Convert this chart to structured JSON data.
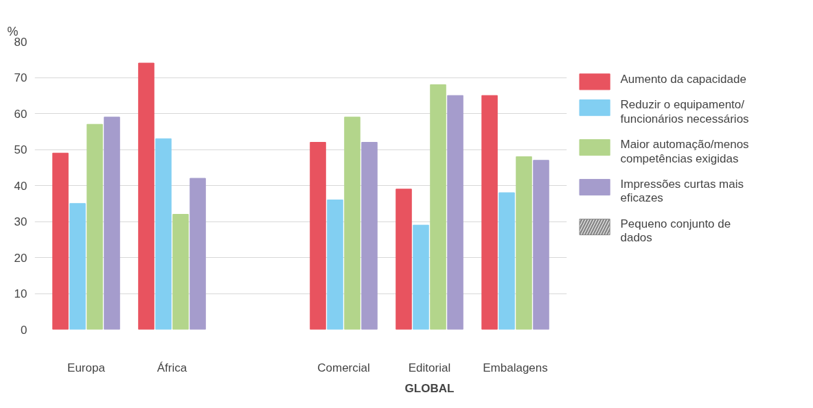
{
  "chart_data": {
    "type": "bar",
    "ylabel": "%",
    "categories": [
      "Europa",
      "África",
      null,
      "Comercial",
      "Editorial",
      "Embalagens"
    ],
    "series": [
      {
        "name": "Aumento da capacidade",
        "color": "#e8535f",
        "values": [
          49,
          74,
          null,
          52,
          39,
          65
        ]
      },
      {
        "name": "Reduzir o equipamento/ funcionários necessários",
        "color": "#82cff2",
        "values": [
          35,
          53,
          null,
          36,
          29,
          38
        ]
      },
      {
        "name": "Maior automação/menos competências exigidas",
        "color": "#b3d58b",
        "values": [
          57,
          32,
          null,
          59,
          68,
          48
        ]
      },
      {
        "name": "Impressões curtas mais eficazes",
        "color": "#a59ccc",
        "values": [
          59,
          42,
          null,
          52,
          65,
          47
        ]
      },
      {
        "name": "Pequeno conjunto de dados",
        "color": "#8a8a8a",
        "values": [
          null,
          null,
          null,
          null,
          null,
          null
        ]
      }
    ],
    "ylim": [
      0,
      80
    ],
    "yticks": [
      0,
      10,
      20,
      30,
      40,
      50,
      60,
      70,
      80
    ],
    "grid": "y",
    "legend": "right",
    "annotations": [
      "GLOBAL"
    ]
  }
}
